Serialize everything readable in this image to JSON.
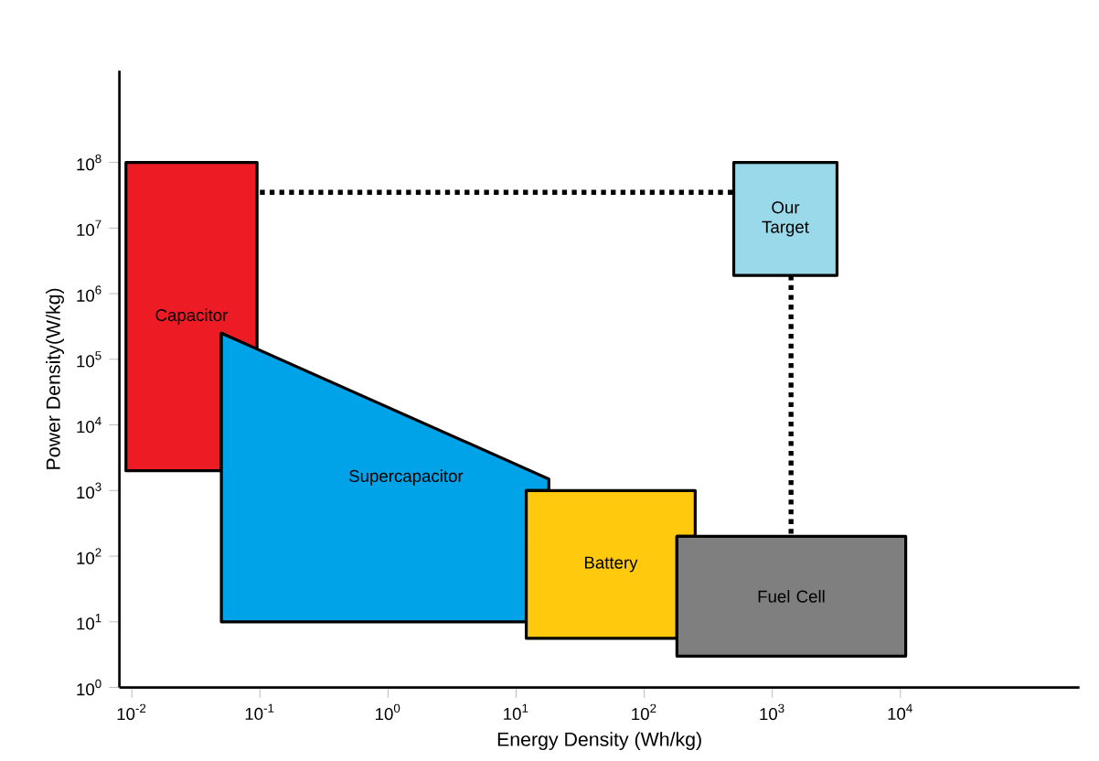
{
  "chart_data": {
    "type": "line",
    "xlabel": "Energy Density (Wh/kg)",
    "ylabel": "Power Density(W/kg)",
    "log": "xy",
    "grid": false,
    "marker": "none",
    "xlim": [
      0.008,
      250000
    ],
    "ylim": [
      1,
      2500000000
    ],
    "xticks": [
      {
        "value": 0.01,
        "label": "10$^{-2}$"
      },
      {
        "value": 0.1,
        "label": "10$^{-1}$"
      },
      {
        "value": 1,
        "label": "10$^{0}$"
      },
      {
        "value": 10,
        "label": "10$^{1}$"
      },
      {
        "value": 100,
        "label": "10$^{2}$"
      },
      {
        "value": 1000,
        "label": "10$^{3}$"
      },
      {
        "value": 10000,
        "label": "10$^{4}$"
      }
    ],
    "yticks": [
      {
        "value": 1,
        "label": "10$^{0}$"
      },
      {
        "value": 10,
        "label": "10$^{1}$"
      },
      {
        "value": 100,
        "label": "10$^{2}$"
      },
      {
        "value": 1000,
        "label": "10$^{3}$"
      },
      {
        "value": 10000,
        "label": "10$^{4}$"
      },
      {
        "value": 100000,
        "label": "10$^{5}$"
      },
      {
        "value": 1000000,
        "label": "10$^{6}$"
      },
      {
        "value": 10000000,
        "label": "10$^{7}$"
      },
      {
        "value": 100000000,
        "label": "10$^{8}$"
      }
    ],
    "series": [
      {
        "color": "#000000",
        "line_style": "dotted",
        "x": [
          0.1,
          500
        ],
        "values": [
          35000000,
          35000000
        ]
      },
      {
        "color": "#000000",
        "line_style": "dotted",
        "x": [
          1400,
          1400
        ],
        "values": [
          1900000,
          200
        ]
      },
      {
        "type": "area",
        "name": "Capacitor",
        "color": "#ed1c24",
        "x": [
          0.009,
          0.05,
          0.05,
          0.095,
          0.095,
          0.009,
          0.009
        ],
        "values": [
          2000,
          2000,
          250000,
          140000,
          100000000,
          100000000,
          2000
        ]
      },
      {
        "type": "area",
        "name": "Supercapacitor",
        "color": "#00a2e8",
        "x": [
          0.05,
          18,
          18,
          12,
          12,
          0.05,
          0.05
        ],
        "values": [
          250000,
          1500,
          1000,
          1000,
          10,
          10,
          250000
        ]
      },
      {
        "type": "area",
        "name": "Battery",
        "color": "#ffc90e",
        "x": [
          12,
          180,
          180,
          250,
          250,
          12,
          12
        ],
        "values": [
          5.6,
          5.6,
          200,
          200,
          1000,
          1000,
          5.6
        ]
      },
      {
        "type": "area",
        "name": "Fuel  Cell",
        "color": "#7f7f7f",
        "x": [
          180,
          11000,
          11000,
          180,
          180
        ],
        "values": [
          3,
          3,
          200,
          200,
          3
        ]
      },
      {
        "type": "area",
        "name": "Our Target",
        "color": "#99d9ea",
        "x": [
          500,
          3200,
          3200,
          500,
          500
        ],
        "values": [
          1900000,
          1900000,
          100000000,
          100000000,
          1900000
        ]
      }
    ]
  }
}
